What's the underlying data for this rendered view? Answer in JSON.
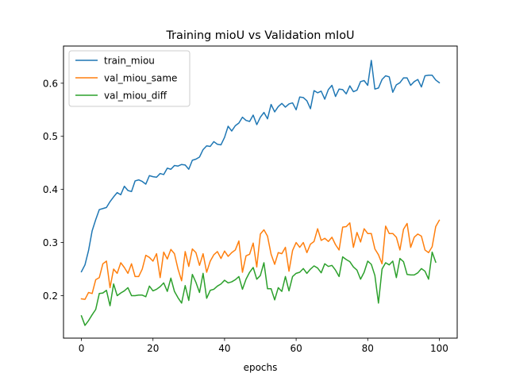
{
  "chart_data": {
    "type": "line",
    "title": "Training mioU vs Validation mIoU",
    "xlabel": "epochs",
    "ylabel": "",
    "xlim": [
      -5,
      105
    ],
    "ylim": [
      0.12,
      0.67
    ],
    "x_ticks": [
      0,
      20,
      40,
      60,
      80,
      100
    ],
    "y_ticks": [
      0.2,
      0.3,
      0.4,
      0.5,
      0.6
    ],
    "x_tick_labels": [
      "0",
      "20",
      "40",
      "60",
      "80",
      "100"
    ],
    "y_tick_labels": [
      "0.2",
      "0.3",
      "0.4",
      "0.5",
      "0.6"
    ],
    "grid": false,
    "legend_position": "top-left",
    "series": [
      {
        "name": "train_miou",
        "color": "#1f77b4",
        "values": [
          0.245,
          0.258,
          0.285,
          0.322,
          0.343,
          0.362,
          0.364,
          0.366,
          0.377,
          0.386,
          0.394,
          0.39,
          0.406,
          0.398,
          0.396,
          0.416,
          0.418,
          0.415,
          0.41,
          0.426,
          0.424,
          0.423,
          0.43,
          0.428,
          0.44,
          0.438,
          0.445,
          0.444,
          0.447,
          0.446,
          0.438,
          0.455,
          0.457,
          0.461,
          0.475,
          0.482,
          0.481,
          0.49,
          0.485,
          0.484,
          0.498,
          0.519,
          0.51,
          0.52,
          0.525,
          0.536,
          0.53,
          0.528,
          0.54,
          0.522,
          0.536,
          0.545,
          0.533,
          0.56,
          0.546,
          0.556,
          0.562,
          0.555,
          0.561,
          0.563,
          0.55,
          0.574,
          0.573,
          0.567,
          0.552,
          0.586,
          0.582,
          0.585,
          0.57,
          0.588,
          0.596,
          0.575,
          0.589,
          0.588,
          0.58,
          0.595,
          0.584,
          0.587,
          0.603,
          0.605,
          0.596,
          0.643,
          0.589,
          0.591,
          0.607,
          0.614,
          0.612,
          0.583,
          0.597,
          0.601,
          0.61,
          0.61,
          0.596,
          0.603,
          0.607,
          0.593,
          0.614,
          0.615,
          0.615,
          0.606,
          0.601
        ]
      },
      {
        "name": "val_miou_same",
        "color": "#ff7f0e",
        "values": [
          0.194,
          0.193,
          0.206,
          0.204,
          0.23,
          0.234,
          0.26,
          0.265,
          0.215,
          0.25,
          0.242,
          0.262,
          0.253,
          0.242,
          0.26,
          0.236,
          0.236,
          0.25,
          0.276,
          0.272,
          0.265,
          0.279,
          0.234,
          0.282,
          0.269,
          0.287,
          0.279,
          0.25,
          0.228,
          0.283,
          0.255,
          0.288,
          0.281,
          0.257,
          0.279,
          0.244,
          0.265,
          0.277,
          0.283,
          0.27,
          0.284,
          0.274,
          0.281,
          0.286,
          0.303,
          0.244,
          0.275,
          0.278,
          0.299,
          0.254,
          0.316,
          0.324,
          0.312,
          0.278,
          0.259,
          0.281,
          0.279,
          0.291,
          0.246,
          0.285,
          0.3,
          0.291,
          0.3,
          0.281,
          0.297,
          0.302,
          0.326,
          0.304,
          0.308,
          0.302,
          0.31,
          0.296,
          0.286,
          0.329,
          0.33,
          0.337,
          0.291,
          0.319,
          0.301,
          0.326,
          0.317,
          0.317,
          0.288,
          0.277,
          0.26,
          0.331,
          0.317,
          0.317,
          0.31,
          0.286,
          0.325,
          0.336,
          0.291,
          0.31,
          0.316,
          0.312,
          0.286,
          0.281,
          0.292,
          0.33,
          0.342
        ]
      },
      {
        "name": "val_miou_diff",
        "color": "#2ca02c",
        "values": [
          0.162,
          0.144,
          0.153,
          0.164,
          0.174,
          0.204,
          0.205,
          0.21,
          0.181,
          0.222,
          0.2,
          0.205,
          0.209,
          0.215,
          0.2,
          0.2,
          0.201,
          0.201,
          0.198,
          0.218,
          0.209,
          0.212,
          0.217,
          0.224,
          0.208,
          0.233,
          0.208,
          0.196,
          0.186,
          0.219,
          0.191,
          0.24,
          0.225,
          0.206,
          0.242,
          0.195,
          0.21,
          0.212,
          0.218,
          0.222,
          0.229,
          0.224,
          0.226,
          0.23,
          0.236,
          0.212,
          0.231,
          0.244,
          0.253,
          0.231,
          0.238,
          0.262,
          0.213,
          0.213,
          0.192,
          0.215,
          0.208,
          0.236,
          0.209,
          0.236,
          0.242,
          0.244,
          0.251,
          0.242,
          0.25,
          0.256,
          0.252,
          0.243,
          0.26,
          0.255,
          0.257,
          0.248,
          0.236,
          0.273,
          0.268,
          0.264,
          0.254,
          0.248,
          0.231,
          0.244,
          0.265,
          0.259,
          0.238,
          0.186,
          0.25,
          0.262,
          0.258,
          0.265,
          0.234,
          0.27,
          0.264,
          0.24,
          0.239,
          0.239,
          0.243,
          0.251,
          0.246,
          0.231,
          0.282,
          0.263
        ]
      }
    ]
  }
}
